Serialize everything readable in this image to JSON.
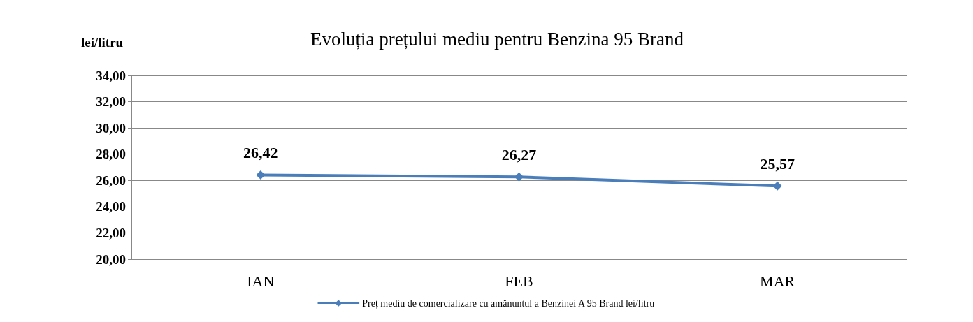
{
  "chart_data": {
    "type": "line",
    "title": "Evoluția prețului mediu pentru Benzina 95 Brand",
    "ylabel": "lei/litru",
    "categories": [
      "IAN",
      "FEB",
      "MAR"
    ],
    "series": [
      {
        "name": "Preț mediu de comercializare cu amănuntul a Benzinei A 95 Brand lei/litru",
        "color": "#4a7ebb",
        "values": [
          26.42,
          26.27,
          25.57
        ],
        "value_labels": [
          "26,42",
          "26,27",
          "25,57"
        ]
      }
    ],
    "ylim": [
      20,
      34
    ],
    "yticks": [
      {
        "value": 20,
        "label": "20,00"
      },
      {
        "value": 22,
        "label": "22,00"
      },
      {
        "value": 24,
        "label": "24,00"
      },
      {
        "value": 26,
        "label": "26,00"
      },
      {
        "value": 28,
        "label": "28,00"
      },
      {
        "value": 30,
        "label": "30,00"
      },
      {
        "value": 32,
        "label": "32,00"
      },
      {
        "value": 34,
        "label": "34,00"
      }
    ],
    "grid": "y",
    "legend": "bottom",
    "marker": "diamond",
    "line_style": "solid"
  }
}
